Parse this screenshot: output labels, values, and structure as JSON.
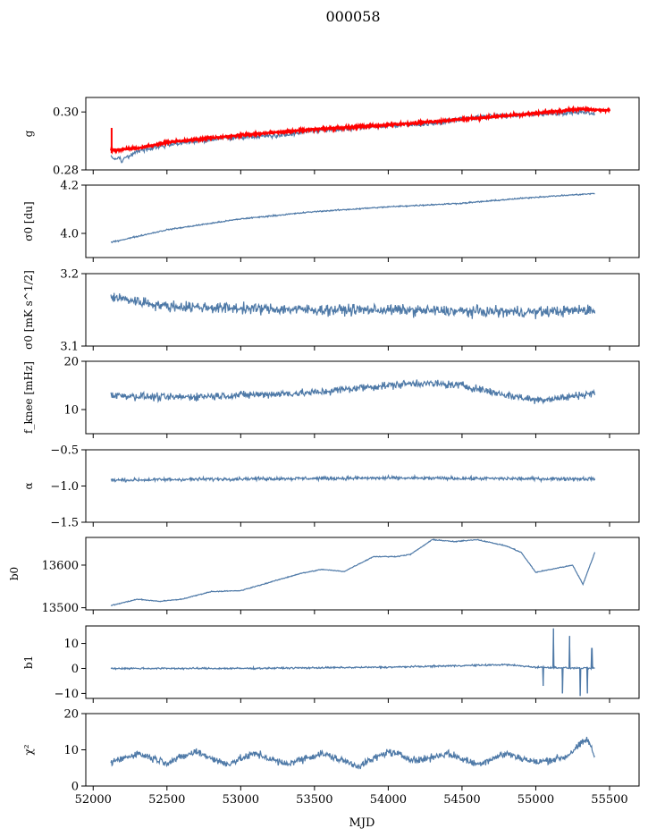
{
  "figure": {
    "title": "000058",
    "xlabel": "MJD",
    "x_ticks": [
      "52000",
      "52500",
      "53000",
      "53500",
      "54000",
      "54500",
      "55000",
      "55500"
    ]
  },
  "colors": {
    "series": "#4e79a7",
    "fit": "#ff0000",
    "axes": "#000000"
  },
  "chart_data": [
    {
      "type": "line",
      "ylabel": "g",
      "ylim": [
        0.28,
        0.305
      ],
      "xlim": [
        51950,
        55700
      ],
      "y_ticks": [
        "0.28",
        "0.30"
      ],
      "series_x_range": [
        52120,
        55400
      ],
      "series_points": [
        [
          52120,
          0.2845
        ],
        [
          52200,
          0.2835
        ],
        [
          52300,
          0.2865
        ],
        [
          52400,
          0.2875
        ],
        [
          52500,
          0.2885
        ],
        [
          52700,
          0.29
        ],
        [
          52900,
          0.291
        ],
        [
          53100,
          0.2915
        ],
        [
          53300,
          0.292
        ],
        [
          53500,
          0.2935
        ],
        [
          53700,
          0.294
        ],
        [
          53900,
          0.295
        ],
        [
          54100,
          0.2955
        ],
        [
          54300,
          0.296
        ],
        [
          54500,
          0.2975
        ],
        [
          54700,
          0.2985
        ],
        [
          54900,
          0.299
        ],
        [
          55100,
          0.2995
        ],
        [
          55300,
          0.3
        ],
        [
          55400,
          0.2995
        ]
      ],
      "series_noise": 0.0012,
      "fit_points": [
        [
          52120,
          0.2868
        ],
        [
          52300,
          0.2875
        ],
        [
          52500,
          0.2895
        ],
        [
          52800,
          0.291
        ],
        [
          53000,
          0.292
        ],
        [
          53500,
          0.294
        ],
        [
          54000,
          0.2955
        ],
        [
          54500,
          0.2975
        ],
        [
          55000,
          0.2995
        ],
        [
          55300,
          0.301
        ],
        [
          55500,
          0.3005
        ]
      ],
      "fit_noise": 0.0006,
      "fit_spike": {
        "x": 52125,
        "y_from": 0.2858,
        "y_to": 0.2945
      }
    },
    {
      "type": "line",
      "ylabel": "σ0 [du]",
      "ylim": [
        3.9,
        4.2
      ],
      "xlim": [
        51950,
        55700
      ],
      "y_ticks": [
        "4.0",
        "4.2"
      ],
      "series_x_range": [
        52120,
        55400
      ],
      "series_points": [
        [
          52120,
          3.963
        ],
        [
          52500,
          4.015
        ],
        [
          53000,
          4.06
        ],
        [
          53500,
          4.09
        ],
        [
          54000,
          4.11
        ],
        [
          54500,
          4.125
        ],
        [
          55000,
          4.15
        ],
        [
          55400,
          4.165
        ]
      ],
      "series_noise": 0.004
    },
    {
      "type": "line",
      "ylabel": "σ0 [mK s^1/2]",
      "ylim": [
        3.1,
        3.2
      ],
      "xlim": [
        51950,
        55700
      ],
      "y_ticks": [
        "3.1",
        "3.2"
      ],
      "series_x_range": [
        52120,
        55400
      ],
      "series_points": [
        [
          52120,
          3.168
        ],
        [
          52500,
          3.155
        ],
        [
          53000,
          3.152
        ],
        [
          53500,
          3.15
        ],
        [
          54000,
          3.15
        ],
        [
          54500,
          3.148
        ],
        [
          55000,
          3.147
        ],
        [
          55400,
          3.15
        ]
      ],
      "series_noise": 0.011
    },
    {
      "type": "line",
      "ylabel": "f_knee [mHz]",
      "ylim": [
        5,
        20
      ],
      "xlim": [
        51950,
        55700
      ],
      "y_ticks": [
        "10",
        "20"
      ],
      "series_x_range": [
        52120,
        55400
      ],
      "series_points": [
        [
          52120,
          13
        ],
        [
          52500,
          12.5
        ],
        [
          53000,
          13
        ],
        [
          53500,
          13.5
        ],
        [
          53800,
          14.5
        ],
        [
          54200,
          15.5
        ],
        [
          54500,
          15
        ],
        [
          54800,
          13
        ],
        [
          55000,
          12
        ],
        [
          55200,
          12.5
        ],
        [
          55400,
          13.5
        ]
      ],
      "series_noise": 1.2
    },
    {
      "type": "line",
      "ylabel": "α",
      "ylim": [
        -1.5,
        -0.5
      ],
      "xlim": [
        51950,
        55700
      ],
      "y_ticks": [
        "−1.5",
        "−1.0",
        "−0.5"
      ],
      "series_x_range": [
        52120,
        55400
      ],
      "series_points": [
        [
          52120,
          -0.92
        ],
        [
          53000,
          -0.9
        ],
        [
          54000,
          -0.89
        ],
        [
          55000,
          -0.9
        ],
        [
          55400,
          -0.9
        ]
      ],
      "series_noise": 0.035
    },
    {
      "type": "line",
      "ylabel": "b0",
      "ylim": [
        13495,
        13665
      ],
      "xlim": [
        51950,
        55700
      ],
      "y_ticks": [
        "13500",
        "13600"
      ],
      "series_x_range": [
        52120,
        55400
      ],
      "series_points": [
        [
          52120,
          13505
        ],
        [
          52300,
          13520
        ],
        [
          52450,
          13515
        ],
        [
          52600,
          13520
        ],
        [
          52800,
          13538
        ],
        [
          53000,
          13540
        ],
        [
          53200,
          13560
        ],
        [
          53400,
          13580
        ],
        [
          53550,
          13590
        ],
        [
          53700,
          13585
        ],
        [
          53900,
          13620
        ],
        [
          54050,
          13620
        ],
        [
          54150,
          13625
        ],
        [
          54300,
          13660
        ],
        [
          54450,
          13655
        ],
        [
          54600,
          13660
        ],
        [
          54800,
          13645
        ],
        [
          54900,
          13630
        ],
        [
          55000,
          13583
        ],
        [
          55100,
          13590
        ],
        [
          55250,
          13600
        ],
        [
          55320,
          13555
        ],
        [
          55400,
          13630
        ]
      ],
      "series_noise": 1.5
    },
    {
      "type": "line",
      "ylabel": "b1",
      "ylim": [
        -12,
        17
      ],
      "xlim": [
        51950,
        55700
      ],
      "y_ticks": [
        "−10",
        "0",
        "10"
      ],
      "series_x_range": [
        52120,
        55400
      ],
      "series_points": [
        [
          52120,
          0
        ],
        [
          53000,
          0
        ],
        [
          54000,
          0.5
        ],
        [
          54800,
          1.5
        ],
        [
          55000,
          0.5
        ],
        [
          55400,
          0
        ]
      ],
      "series_noise": 0.5,
      "spikes": [
        [
          55050,
          -7
        ],
        [
          55120,
          16
        ],
        [
          55180,
          -10
        ],
        [
          55230,
          13
        ],
        [
          55300,
          -11
        ],
        [
          55350,
          -10
        ],
        [
          55380,
          8
        ]
      ]
    },
    {
      "type": "line",
      "ylabel": "χ²",
      "ylim": [
        0,
        20
      ],
      "xlim": [
        51950,
        55700
      ],
      "y_ticks": [
        "0",
        "10",
        "20"
      ],
      "series_x_range": [
        52120,
        55400
      ],
      "series_points": [
        [
          52120,
          6.5
        ],
        [
          52300,
          9
        ],
        [
          52500,
          6.5
        ],
        [
          52700,
          9.5
        ],
        [
          52900,
          6
        ],
        [
          53100,
          9
        ],
        [
          53300,
          6
        ],
        [
          53550,
          9
        ],
        [
          53800,
          5.5
        ],
        [
          54000,
          9.5
        ],
        [
          54200,
          7
        ],
        [
          54400,
          9
        ],
        [
          54600,
          6
        ],
        [
          54800,
          9
        ],
        [
          55000,
          6.5
        ],
        [
          55200,
          8
        ],
        [
          55350,
          13
        ],
        [
          55400,
          8
        ]
      ],
      "series_noise": 1.5
    }
  ]
}
